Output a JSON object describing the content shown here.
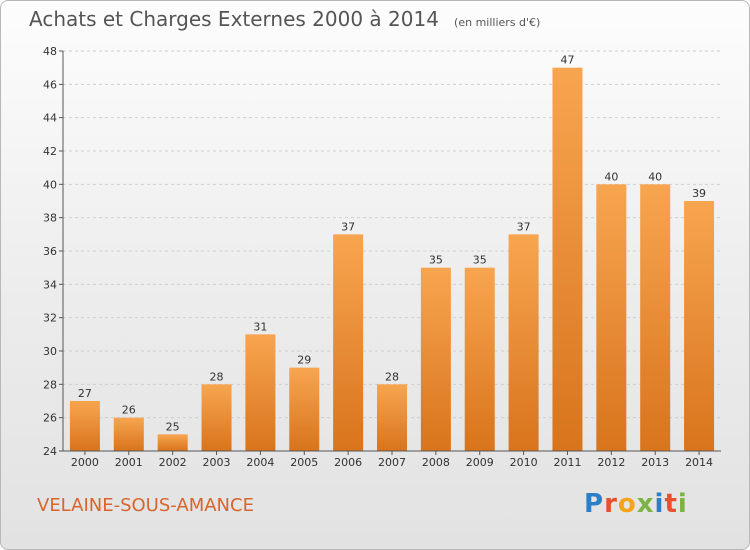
{
  "title": "Achats et Charges Externes 2000 à 2014",
  "subtitle": "(en milliers d'€)",
  "location": "VELAINE-SOUS-AMANCE",
  "logo": {
    "letters": [
      {
        "char": "P",
        "color": "#2a7fc8"
      },
      {
        "char": "r",
        "color": "#e94f2e"
      },
      {
        "char": "o",
        "color": "#f6a31c"
      },
      {
        "char": "x",
        "color": "#7cb342"
      },
      {
        "char": "i",
        "color": "#2a7fc8"
      },
      {
        "char": "t",
        "color": "#e94f2e"
      },
      {
        "char": "i",
        "color": "#7cb342"
      }
    ]
  },
  "colors": {
    "bar_top": "#f8a550",
    "bar_bottom": "#d8741c",
    "grid": "#cfcfcf",
    "axis": "#555555"
  },
  "chart_data": {
    "type": "bar",
    "categories": [
      "2000",
      "2001",
      "2002",
      "2003",
      "2004",
      "2005",
      "2006",
      "2007",
      "2008",
      "2009",
      "2010",
      "2011",
      "2012",
      "2013",
      "2014"
    ],
    "values": [
      27,
      26,
      25,
      28,
      31,
      29,
      37,
      28,
      35,
      35,
      37,
      47,
      40,
      40,
      39
    ],
    "ylim": [
      24,
      48
    ],
    "yticks": [
      24,
      26,
      28,
      30,
      32,
      34,
      36,
      38,
      40,
      42,
      44,
      46,
      48
    ],
    "grid": "horizontal dashed",
    "legend": "none"
  }
}
